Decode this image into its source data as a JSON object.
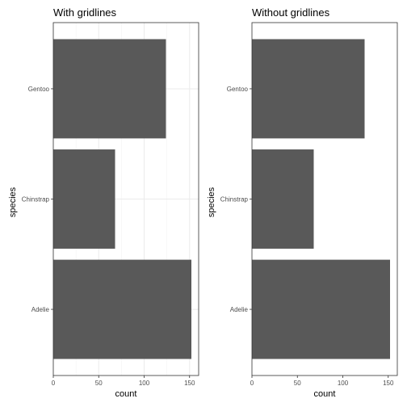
{
  "chart_data": [
    {
      "type": "bar",
      "orientation": "horizontal",
      "title": "With gridlines",
      "xlabel": "count",
      "ylabel": "species",
      "categories": [
        "Adelie",
        "Chinstrap",
        "Gentoo"
      ],
      "values": [
        152,
        68,
        124
      ],
      "xlim": [
        0,
        160
      ],
      "xticks": [
        0,
        50,
        100,
        150
      ],
      "grid": true,
      "bar_color": "#595959"
    },
    {
      "type": "bar",
      "orientation": "horizontal",
      "title": "Without gridlines",
      "xlabel": "count",
      "ylabel": "species",
      "categories": [
        "Adelie",
        "Chinstrap",
        "Gentoo"
      ],
      "values": [
        152,
        68,
        124
      ],
      "xlim": [
        0,
        160
      ],
      "xticks": [
        0,
        50,
        100,
        150
      ],
      "grid": false,
      "bar_color": "#595959"
    }
  ]
}
